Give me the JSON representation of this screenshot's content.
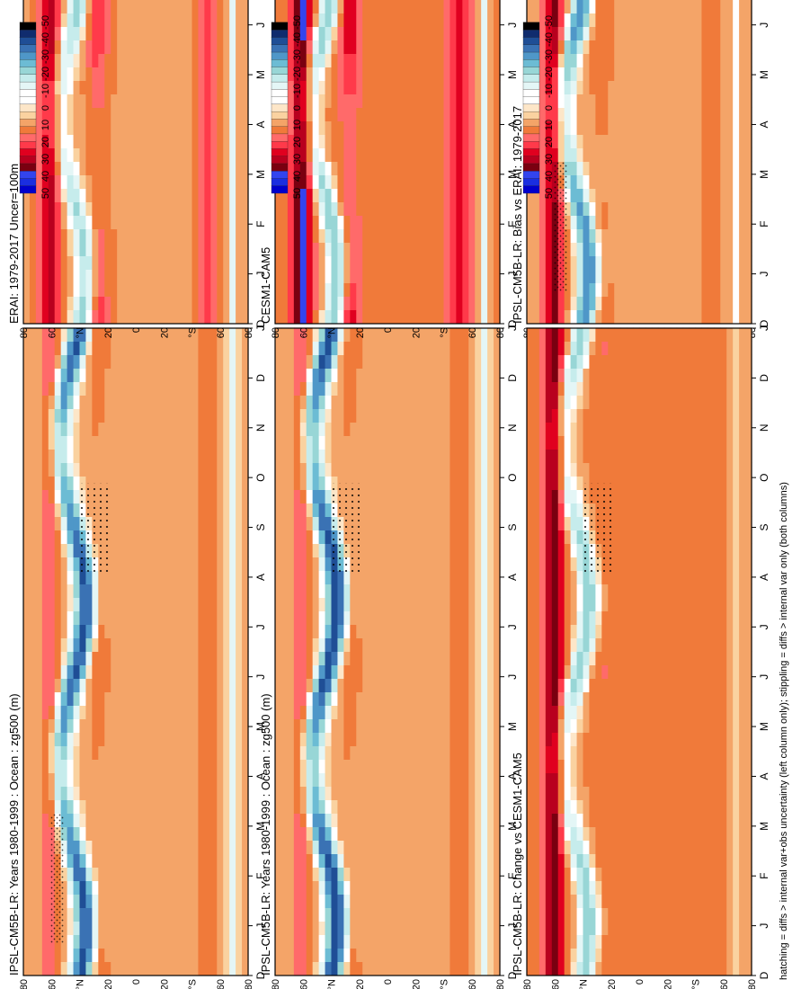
{
  "figure": {
    "footnote": "hatching = diffs > internal var+obs uncertainty (left column only); stippling = diffs > internal var only (both columns)",
    "months": [
      "D",
      "J",
      "F",
      "M",
      "A",
      "M",
      "J",
      "J",
      "A",
      "S",
      "O",
      "N",
      "D",
      "J"
    ],
    "lat_ticks": [
      "80",
      "60",
      "°N",
      "20",
      "0",
      "20",
      "°S",
      "60",
      "80"
    ],
    "colorbar_labels": [
      "50",
      "40",
      "30",
      "20",
      "10",
      "0",
      "-10",
      "-20",
      "-30",
      "-40",
      "-50"
    ],
    "colorbar_colors": [
      "#0000cc",
      "#1a2ee0",
      "#3344ee",
      "#7a0010",
      "#b8001e",
      "#e0001f",
      "#ff3a4a",
      "#ff6a6a",
      "#f07a3a",
      "#f4a468",
      "#fad2a0",
      "#fde6c8",
      "#ffffff",
      "#ffffff",
      "#e4f6f6",
      "#c6ecec",
      "#98d6d6",
      "#6cbcd4",
      "#4f97c8",
      "#3a72b4",
      "#1f4e96",
      "#102c6e",
      "#000000"
    ]
  },
  "chart_data": [
    {
      "type": "heatmap",
      "title": "IPSL-CM5B-LR: Years 1980-1999 : Ocean : zg500 (m)",
      "x": "month (D-J)",
      "y": "latitude 90S-90N",
      "stipple": true,
      "hatch": true,
      "features": {
        "nh_low": -45,
        "nh_high": 14,
        "mid_band": 10,
        "sh_band": 8,
        "bg": 0
      }
    },
    {
      "type": "heatmap",
      "title": "IPSL-CM5B-LR: Years 1980-1999 : Ocean : zg500 (m)",
      "x": "month (D-J)",
      "y": "latitude 90S-90N",
      "stipple": true,
      "hatch": false,
      "features": {
        "nh_low": -48,
        "nh_high": 14,
        "mid_band": 10,
        "sh_band": 8,
        "bg": 0
      }
    },
    {
      "type": "heatmap",
      "title": "ERAI: 1979-2017 Uncer=100m",
      "x": "month (D-J)",
      "y": "latitude 90S-90N",
      "stipple": true,
      "hatch": false,
      "features": {
        "nh_low": -28,
        "nh_high": 24,
        "mid_band": 16,
        "sh_band": 12,
        "bg": 3
      }
    },
    {
      "type": "heatmap",
      "title": "CESM1-CAM5",
      "x": "month (D-J)",
      "y": "latitude 90S-90N",
      "stipple": true,
      "hatch": false,
      "features": {
        "nh_low": -35,
        "nh_high": 30,
        "mid_band": 18,
        "sh_band": 14,
        "bg": 6
      }
    },
    {
      "type": "heatmap",
      "title": "IPSL-CM5B-LR: Bias vs ERAI: 1979-2017",
      "x": "month (D-J)",
      "y": "latitude 90S-90N",
      "stipple": true,
      "hatch": true,
      "features": {
        "nh_low": -40,
        "nh_high": 28,
        "mid_band": 8,
        "sh_band": 6,
        "bg": 2
      }
    },
    {
      "type": "heatmap",
      "title": "IPSL-CM5B-LR: Change vs CESM1-CAM5",
      "x": "month (D-J)",
      "y": "latitude 90S-90N",
      "stipple": true,
      "hatch": false,
      "features": {
        "nh_low": -30,
        "nh_high": 30,
        "mid_band": 6,
        "sh_band": 4,
        "bg": 4
      }
    }
  ]
}
